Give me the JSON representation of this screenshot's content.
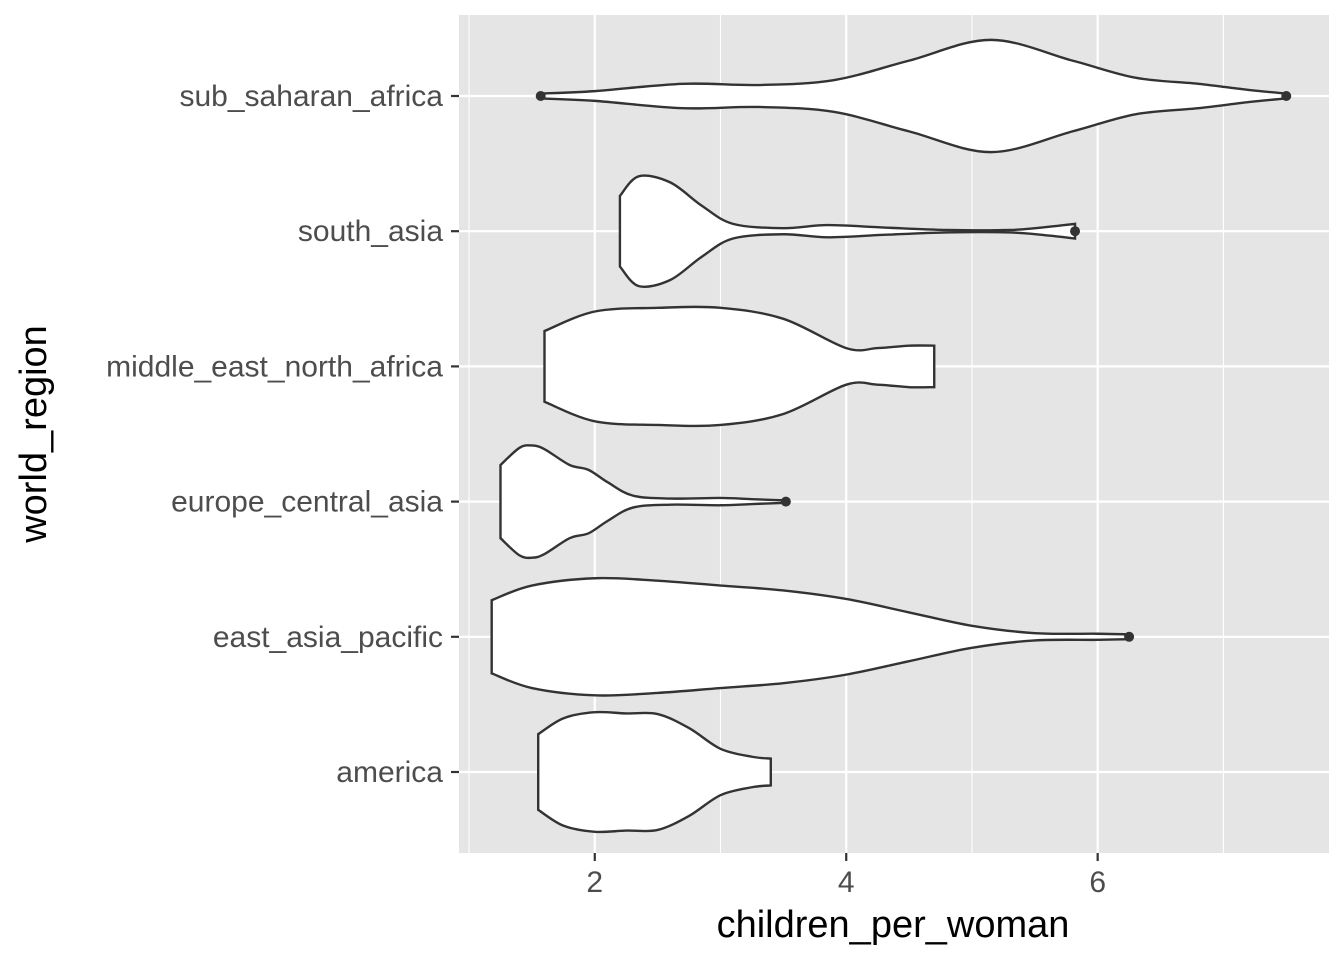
{
  "chart_data": {
    "type": "violin",
    "orientation": "horizontal",
    "title": "",
    "xlabel": "children_per_woman",
    "ylabel": "world_region",
    "xlim": [
      0.92,
      7.84
    ],
    "x_ticks": [
      2,
      4,
      6
    ],
    "x_minor_ticks": [
      1,
      3,
      5,
      7
    ],
    "categories": [
      "america",
      "east_asia_pacific",
      "europe_central_asia",
      "middle_east_north_africa",
      "south_asia",
      "sub_saharan_africa"
    ],
    "grid": true,
    "legend": "none",
    "colors": {
      "panel": "#e5e5e5",
      "fill": "#ffffff",
      "outline": "#333333",
      "grid": "#ffffff"
    },
    "violins": [
      {
        "category": "america",
        "x": [
          1.55,
          1.75,
          2.0,
          2.25,
          2.5,
          2.75,
          3.0,
          3.25,
          3.4
        ],
        "width": [
          0.62,
          0.88,
          0.98,
          0.96,
          0.95,
          0.72,
          0.38,
          0.25,
          0.22
        ]
      },
      {
        "category": "east_asia_pacific",
        "x": [
          1.18,
          1.5,
          2.0,
          2.5,
          3.0,
          3.5,
          4.0,
          4.5,
          5.0,
          5.5,
          6.0,
          6.25
        ],
        "width": [
          0.6,
          0.84,
          0.96,
          0.92,
          0.84,
          0.76,
          0.62,
          0.4,
          0.18,
          0.06,
          0.05,
          0.04
        ]
      },
      {
        "category": "europe_central_asia",
        "x": [
          1.25,
          1.4,
          1.5,
          1.6,
          1.8,
          1.95,
          2.1,
          2.3,
          2.6,
          3.0,
          3.25,
          3.52
        ],
        "width": [
          0.6,
          0.88,
          0.92,
          0.86,
          0.6,
          0.52,
          0.32,
          0.1,
          0.05,
          0.06,
          0.04,
          0.02
        ]
      },
      {
        "category": "middle_east_north_africa",
        "x": [
          1.6,
          2.0,
          2.5,
          3.0,
          3.5,
          4.0,
          4.25,
          4.5,
          4.7
        ],
        "width": [
          0.58,
          0.9,
          0.96,
          0.96,
          0.78,
          0.3,
          0.3,
          0.34,
          0.34
        ]
      },
      {
        "category": "south_asia",
        "x": [
          2.2,
          2.35,
          2.6,
          2.85,
          3.1,
          3.5,
          3.85,
          4.3,
          4.8,
          5.3,
          5.6,
          5.82
        ],
        "width": [
          0.58,
          0.9,
          0.8,
          0.42,
          0.12,
          0.05,
          0.1,
          0.06,
          0.02,
          0.02,
          0.07,
          0.12
        ]
      },
      {
        "category": "sub_saharan_africa",
        "x": [
          1.57,
          2.0,
          2.7,
          3.3,
          3.9,
          4.5,
          5.15,
          5.8,
          6.3,
          6.8,
          7.2,
          7.5
        ],
        "width": [
          0.04,
          0.08,
          0.2,
          0.18,
          0.26,
          0.58,
          0.92,
          0.58,
          0.3,
          0.2,
          0.1,
          0.04
        ]
      }
    ],
    "outliers": [
      {
        "category": "america",
        "x": []
      },
      {
        "category": "east_asia_pacific",
        "x": [
          6.25
        ]
      },
      {
        "category": "europe_central_asia",
        "x": [
          3.52
        ]
      },
      {
        "category": "middle_east_north_africa",
        "x": []
      },
      {
        "category": "south_asia",
        "x": [
          5.82
        ]
      },
      {
        "category": "sub_saharan_africa",
        "x": [
          1.57,
          7.5
        ]
      }
    ]
  }
}
